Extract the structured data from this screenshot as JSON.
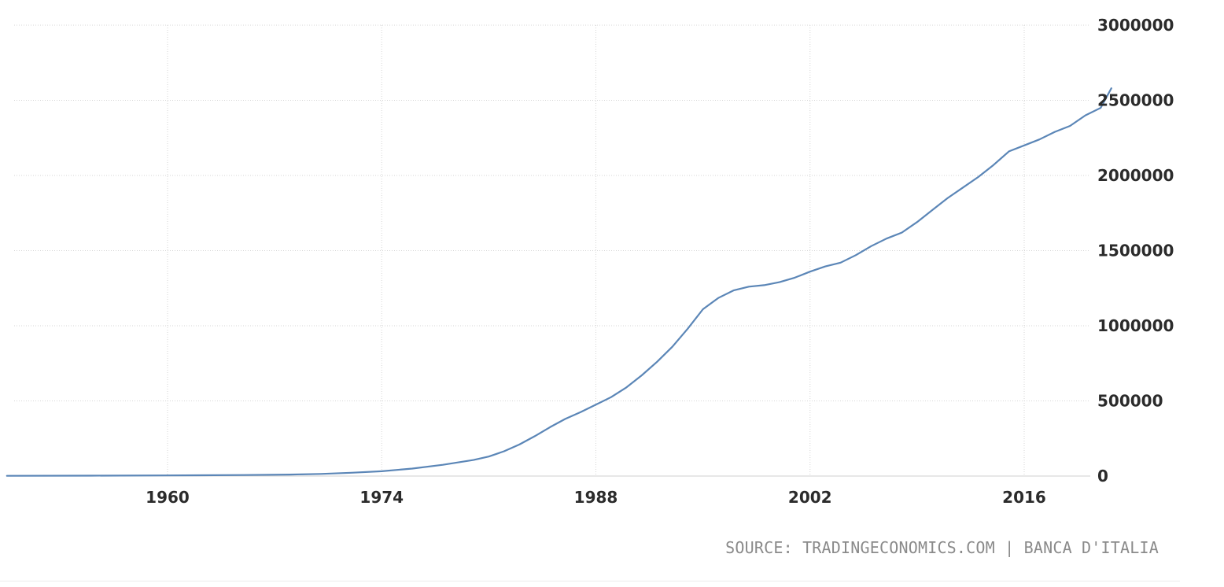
{
  "source_text": "SOURCE: TRADINGECONOMICS.COM | BANCA D'ITALIA",
  "colors": {
    "series": "#5b86b7",
    "grid": "#d6d6d6",
    "tick_text": "#2b2b2b",
    "source_text": "#8a8a8a"
  },
  "chart_data": {
    "type": "line",
    "title": "",
    "xlabel": "",
    "ylabel": "",
    "x_ticks": [
      1960,
      1974,
      1988,
      2002,
      2016
    ],
    "y_ticks": [
      0,
      500000,
      1000000,
      1500000,
      2000000,
      2500000,
      3000000
    ],
    "y_tick_labels": [
      "0",
      "500000",
      "1000000",
      "1500000",
      "2000000",
      "2500000",
      "3000000"
    ],
    "xlim": [
      1949.4,
      2022.1
    ],
    "ylim": [
      0,
      3000000
    ],
    "grid": true,
    "legend": "none",
    "y_axis_position": "right",
    "series": [
      {
        "x": [
          1949.5,
          1955,
          1960,
          1965,
          1968,
          1970,
          1972,
          1974,
          1976,
          1978,
          1980,
          1981,
          1982,
          1983,
          1984,
          1985,
          1986,
          1987,
          1988,
          1989,
          1990,
          1991,
          1992,
          1993,
          1994,
          1995,
          1996,
          1997,
          1998,
          1999,
          2000,
          2001,
          2002,
          2003,
          2004,
          2005,
          2006,
          2007,
          2008,
          2009,
          2010,
          2011,
          2012,
          2013,
          2014,
          2015,
          2016,
          2017,
          2018,
          2019,
          2020,
          2021,
          2021.7
        ],
        "y": [
          1500,
          2500,
          4000,
          7000,
          10000,
          14000,
          22000,
          32000,
          50000,
          75000,
          107000,
          130000,
          165000,
          210000,
          265000,
          325000,
          380000,
          425000,
          475000,
          525000,
          590000,
          670000,
          760000,
          860000,
          980000,
          1110000,
          1185000,
          1235000,
          1260000,
          1270000,
          1290000,
          1320000,
          1360000,
          1395000,
          1420000,
          1470000,
          1530000,
          1580000,
          1620000,
          1690000,
          1770000,
          1850000,
          1920000,
          1990000,
          2070000,
          2160000,
          2200000,
          2240000,
          2290000,
          2330000,
          2400000,
          2450000,
          2580000
        ]
      }
    ]
  }
}
